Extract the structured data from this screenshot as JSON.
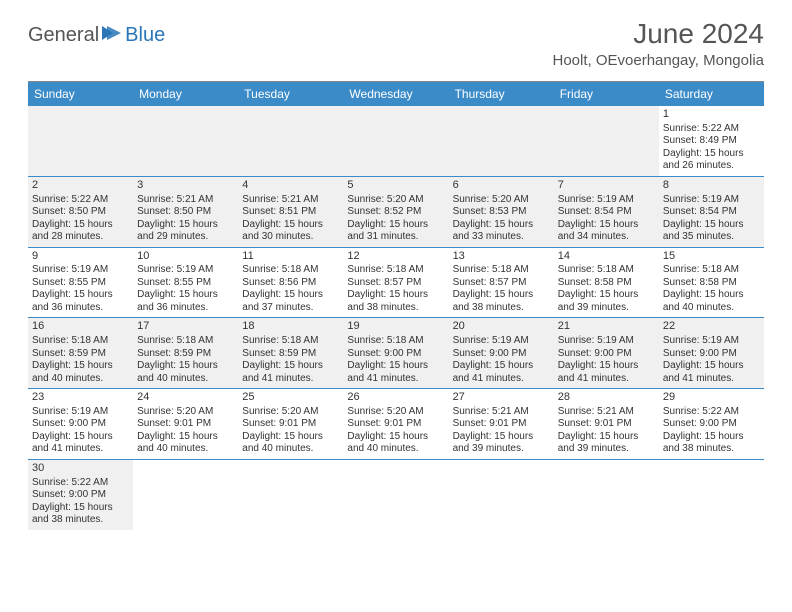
{
  "logo": {
    "text1": "General",
    "text2": "Blue"
  },
  "title": "June 2024",
  "subtitle": "Hoolt, OEvoerhangay, Mongolia",
  "weekdays": [
    "Sunday",
    "Monday",
    "Tuesday",
    "Wednesday",
    "Thursday",
    "Friday",
    "Saturday"
  ],
  "colors": {
    "header_bar": "#3b8bc9",
    "shade": "#f0f0f0",
    "rule": "#3b8bc9",
    "text": "#333333",
    "logo_accent": "#2a76b8"
  },
  "weeks": [
    [
      null,
      null,
      null,
      null,
      null,
      null,
      {
        "n": "1",
        "sr": "5:22 AM",
        "ss": "8:49 PM",
        "dl": "15 hours and 26 minutes."
      }
    ],
    [
      {
        "n": "2",
        "sr": "5:22 AM",
        "ss": "8:50 PM",
        "dl": "15 hours and 28 minutes."
      },
      {
        "n": "3",
        "sr": "5:21 AM",
        "ss": "8:50 PM",
        "dl": "15 hours and 29 minutes."
      },
      {
        "n": "4",
        "sr": "5:21 AM",
        "ss": "8:51 PM",
        "dl": "15 hours and 30 minutes."
      },
      {
        "n": "5",
        "sr": "5:20 AM",
        "ss": "8:52 PM",
        "dl": "15 hours and 31 minutes."
      },
      {
        "n": "6",
        "sr": "5:20 AM",
        "ss": "8:53 PM",
        "dl": "15 hours and 33 minutes."
      },
      {
        "n": "7",
        "sr": "5:19 AM",
        "ss": "8:54 PM",
        "dl": "15 hours and 34 minutes."
      },
      {
        "n": "8",
        "sr": "5:19 AM",
        "ss": "8:54 PM",
        "dl": "15 hours and 35 minutes."
      }
    ],
    [
      {
        "n": "9",
        "sr": "5:19 AM",
        "ss": "8:55 PM",
        "dl": "15 hours and 36 minutes."
      },
      {
        "n": "10",
        "sr": "5:19 AM",
        "ss": "8:55 PM",
        "dl": "15 hours and 36 minutes."
      },
      {
        "n": "11",
        "sr": "5:18 AM",
        "ss": "8:56 PM",
        "dl": "15 hours and 37 minutes."
      },
      {
        "n": "12",
        "sr": "5:18 AM",
        "ss": "8:57 PM",
        "dl": "15 hours and 38 minutes."
      },
      {
        "n": "13",
        "sr": "5:18 AM",
        "ss": "8:57 PM",
        "dl": "15 hours and 38 minutes."
      },
      {
        "n": "14",
        "sr": "5:18 AM",
        "ss": "8:58 PM",
        "dl": "15 hours and 39 minutes."
      },
      {
        "n": "15",
        "sr": "5:18 AM",
        "ss": "8:58 PM",
        "dl": "15 hours and 40 minutes."
      }
    ],
    [
      {
        "n": "16",
        "sr": "5:18 AM",
        "ss": "8:59 PM",
        "dl": "15 hours and 40 minutes."
      },
      {
        "n": "17",
        "sr": "5:18 AM",
        "ss": "8:59 PM",
        "dl": "15 hours and 40 minutes."
      },
      {
        "n": "18",
        "sr": "5:18 AM",
        "ss": "8:59 PM",
        "dl": "15 hours and 41 minutes."
      },
      {
        "n": "19",
        "sr": "5:18 AM",
        "ss": "9:00 PM",
        "dl": "15 hours and 41 minutes."
      },
      {
        "n": "20",
        "sr": "5:19 AM",
        "ss": "9:00 PM",
        "dl": "15 hours and 41 minutes."
      },
      {
        "n": "21",
        "sr": "5:19 AM",
        "ss": "9:00 PM",
        "dl": "15 hours and 41 minutes."
      },
      {
        "n": "22",
        "sr": "5:19 AM",
        "ss": "9:00 PM",
        "dl": "15 hours and 41 minutes."
      }
    ],
    [
      {
        "n": "23",
        "sr": "5:19 AM",
        "ss": "9:00 PM",
        "dl": "15 hours and 41 minutes."
      },
      {
        "n": "24",
        "sr": "5:20 AM",
        "ss": "9:01 PM",
        "dl": "15 hours and 40 minutes."
      },
      {
        "n": "25",
        "sr": "5:20 AM",
        "ss": "9:01 PM",
        "dl": "15 hours and 40 minutes."
      },
      {
        "n": "26",
        "sr": "5:20 AM",
        "ss": "9:01 PM",
        "dl": "15 hours and 40 minutes."
      },
      {
        "n": "27",
        "sr": "5:21 AM",
        "ss": "9:01 PM",
        "dl": "15 hours and 39 minutes."
      },
      {
        "n": "28",
        "sr": "5:21 AM",
        "ss": "9:01 PM",
        "dl": "15 hours and 39 minutes."
      },
      {
        "n": "29",
        "sr": "5:22 AM",
        "ss": "9:00 PM",
        "dl": "15 hours and 38 minutes."
      }
    ],
    [
      {
        "n": "30",
        "sr": "5:22 AM",
        "ss": "9:00 PM",
        "dl": "15 hours and 38 minutes."
      },
      null,
      null,
      null,
      null,
      null,
      null
    ]
  ],
  "labels": {
    "sunrise": "Sunrise: ",
    "sunset": "Sunset: ",
    "daylight": "Daylight: "
  }
}
